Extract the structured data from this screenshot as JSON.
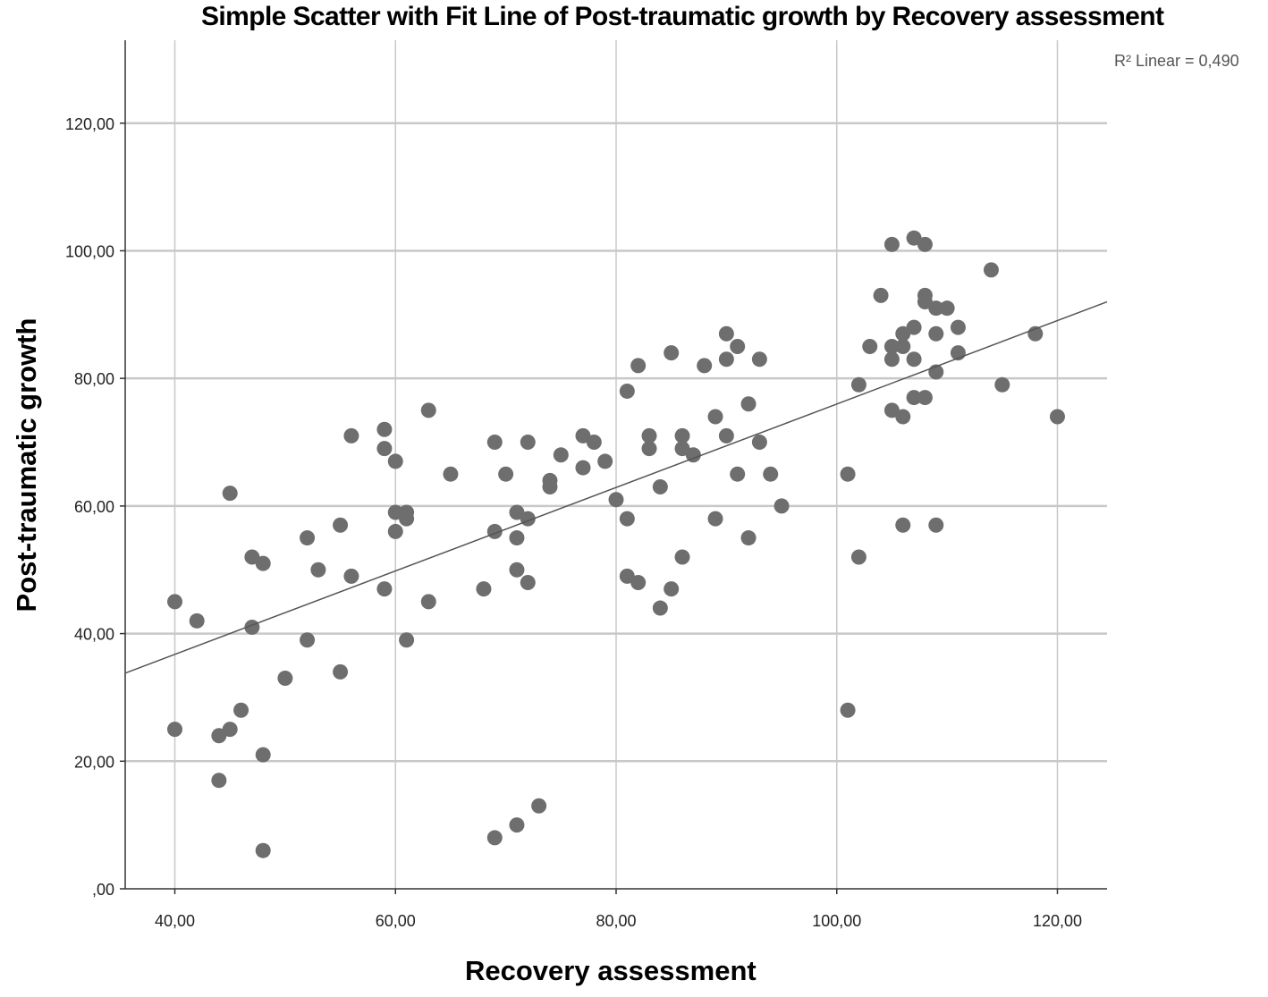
{
  "chart_data": {
    "type": "scatter",
    "title": "Simple Scatter with Fit Line of Post-traumatic growth by Recovery assessment",
    "xlabel": "Recovery assessment",
    "ylabel": "Post-traumatic growth",
    "r2_label": "R² Linear = 0,490",
    "xlim": [
      35.5,
      124.5
    ],
    "ylim": [
      0,
      133
    ],
    "x_ticks": [
      40,
      60,
      80,
      100,
      120
    ],
    "x_tick_labels": [
      "40,00",
      "60,00",
      "80,00",
      "100,00",
      "120,00"
    ],
    "y_ticks": [
      0,
      20,
      40,
      60,
      80,
      100,
      120
    ],
    "y_tick_labels": [
      ",00",
      "20,00",
      "40,00",
      "60,00",
      "80,00",
      "100,00",
      "120,00"
    ],
    "grid": true,
    "fit_line": {
      "x": [
        35.5,
        124.5
      ],
      "y": [
        33.8,
        92.0
      ]
    },
    "marker_color": "#6e6e6e",
    "points": [
      [
        40,
        45
      ],
      [
        40,
        25
      ],
      [
        42,
        42
      ],
      [
        44,
        24
      ],
      [
        44,
        17
      ],
      [
        45,
        62
      ],
      [
        45,
        25
      ],
      [
        46,
        28
      ],
      [
        47,
        52
      ],
      [
        47,
        41
      ],
      [
        48,
        51
      ],
      [
        48,
        21
      ],
      [
        48,
        6
      ],
      [
        50,
        33
      ],
      [
        52,
        55
      ],
      [
        52,
        39
      ],
      [
        53,
        50
      ],
      [
        55,
        57
      ],
      [
        55,
        34
      ],
      [
        56,
        71
      ],
      [
        56,
        49
      ],
      [
        59,
        72
      ],
      [
        59,
        69
      ],
      [
        59,
        47
      ],
      [
        60,
        67
      ],
      [
        60,
        59
      ],
      [
        60,
        56
      ],
      [
        61,
        59
      ],
      [
        61,
        58
      ],
      [
        61,
        39
      ],
      [
        63,
        75
      ],
      [
        63,
        45
      ],
      [
        65,
        65
      ],
      [
        68,
        47
      ],
      [
        69,
        70
      ],
      [
        69,
        56
      ],
      [
        69,
        8
      ],
      [
        70,
        65
      ],
      [
        71,
        59
      ],
      [
        71,
        55
      ],
      [
        71,
        50
      ],
      [
        71,
        10
      ],
      [
        72,
        70
      ],
      [
        72,
        58
      ],
      [
        72,
        48
      ],
      [
        73,
        13
      ],
      [
        74,
        64
      ],
      [
        74,
        63
      ],
      [
        75,
        68
      ],
      [
        77,
        71
      ],
      [
        77,
        66
      ],
      [
        78,
        70
      ],
      [
        79,
        67
      ],
      [
        80,
        61
      ],
      [
        81,
        78
      ],
      [
        81,
        58
      ],
      [
        81,
        49
      ],
      [
        82,
        82
      ],
      [
        82,
        48
      ],
      [
        83,
        71
      ],
      [
        83,
        69
      ],
      [
        84,
        63
      ],
      [
        84,
        44
      ],
      [
        85,
        84
      ],
      [
        85,
        47
      ],
      [
        86,
        71
      ],
      [
        86,
        69
      ],
      [
        86,
        52
      ],
      [
        87,
        68
      ],
      [
        88,
        82
      ],
      [
        89,
        74
      ],
      [
        89,
        58
      ],
      [
        90,
        87
      ],
      [
        90,
        83
      ],
      [
        90,
        71
      ],
      [
        91,
        85
      ],
      [
        91,
        65
      ],
      [
        92,
        76
      ],
      [
        92,
        55
      ],
      [
        93,
        83
      ],
      [
        93,
        70
      ],
      [
        94,
        65
      ],
      [
        95,
        60
      ],
      [
        101,
        65
      ],
      [
        101,
        28
      ],
      [
        102,
        79
      ],
      [
        102,
        52
      ],
      [
        103,
        85
      ],
      [
        104,
        93
      ],
      [
        105,
        101
      ],
      [
        105,
        85
      ],
      [
        105,
        83
      ],
      [
        105,
        75
      ],
      [
        106,
        87
      ],
      [
        106,
        85
      ],
      [
        106,
        74
      ],
      [
        106,
        57
      ],
      [
        107,
        102
      ],
      [
        107,
        88
      ],
      [
        107,
        83
      ],
      [
        107,
        77
      ],
      [
        108,
        101
      ],
      [
        108,
        93
      ],
      [
        108,
        92
      ],
      [
        108,
        77
      ],
      [
        109,
        91
      ],
      [
        109,
        87
      ],
      [
        109,
        81
      ],
      [
        109,
        57
      ],
      [
        110,
        91
      ],
      [
        111,
        88
      ],
      [
        111,
        84
      ],
      [
        114,
        97
      ],
      [
        115,
        79
      ],
      [
        118,
        87
      ],
      [
        120,
        74
      ]
    ]
  }
}
